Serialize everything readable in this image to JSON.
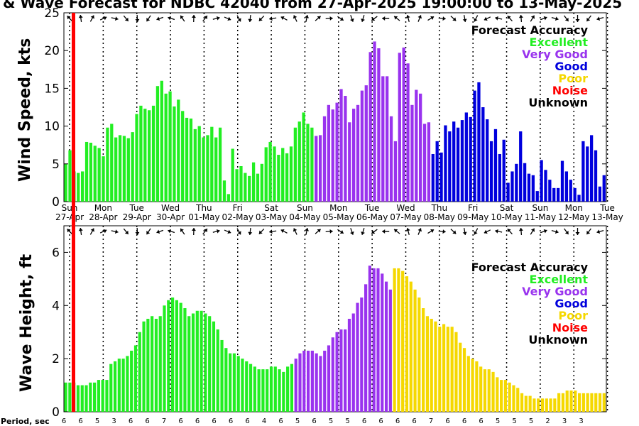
{
  "title": "& Wave Forecast for NDBC 42040 from 27-Apr-2025 19:00:00 to 13-May-2025",
  "legend": {
    "title": "Forecast Accuracy",
    "items": [
      {
        "label": "Excellent",
        "color": "#22ee22"
      },
      {
        "label": "Very Good",
        "color": "#9933ee"
      },
      {
        "label": "Good",
        "color": "#0000dd"
      },
      {
        "label": "Poor",
        "color": "#f5d800"
      },
      {
        "label": "Noise",
        "color": "#ff0000"
      },
      {
        "label": "Unknown",
        "color": "#000000"
      }
    ]
  },
  "period_label": "Period, sec",
  "period_values": [
    "6",
    "6",
    "5",
    "3",
    "6",
    "6",
    "7",
    "6",
    "6",
    "6",
    "6",
    "6",
    "4",
    "6",
    "5",
    "6",
    "5",
    "5",
    "6",
    "6",
    "6",
    "6",
    "7",
    "6",
    "6",
    "6",
    "5",
    "5",
    "5",
    "2",
    "3",
    "3"
  ],
  "chart_data": [
    {
      "type": "bar",
      "ylabel": "Wind Speed, kts",
      "ylim": [
        0,
        25
      ],
      "yticks": [
        0,
        5,
        10,
        15,
        20,
        25
      ],
      "days": [
        {
          "day": "Sun",
          "date": "27-Apr"
        },
        {
          "day": "Mon",
          "date": "28-Apr"
        },
        {
          "day": "Tue",
          "date": "29-Apr"
        },
        {
          "day": "Wed",
          "date": "30-Apr"
        },
        {
          "day": "Thu",
          "date": "01-May"
        },
        {
          "day": "Fri",
          "date": "02-May"
        },
        {
          "day": "Sat",
          "date": "03-May"
        },
        {
          "day": "Sun",
          "date": "04-May"
        },
        {
          "day": "Mon",
          "date": "05-May"
        },
        {
          "day": "Tue",
          "date": "06-May"
        },
        {
          "day": "Wed",
          "date": "07-May"
        },
        {
          "day": "Thu",
          "date": "08-May"
        },
        {
          "day": "Fri",
          "date": "09-May"
        },
        {
          "day": "Sat",
          "date": "10-May"
        },
        {
          "day": "Sun",
          "date": "11-May"
        },
        {
          "day": "Mon",
          "date": "12-May"
        },
        {
          "day": "Tue",
          "date": "13-May"
        }
      ],
      "values": [
        5,
        6.8,
        4,
        3.8,
        4,
        7.9,
        7.8,
        7.4,
        7.1,
        6,
        9.8,
        10.3,
        8.5,
        8.8,
        8.7,
        8.4,
        9.2,
        11.6,
        12.7,
        12.3,
        12.1,
        12.7,
        15.3,
        16,
        14.3,
        14.6,
        12.6,
        13.5,
        12,
        11.1,
        11,
        9.6,
        10,
        8.5,
        8.8,
        9.9,
        8.5,
        9.8,
        2.8,
        1,
        7,
        4.3,
        4.7,
        3.8,
        3.4,
        5.2,
        3.7,
        5,
        7.2,
        7.9,
        7.3,
        6.2,
        7.1,
        6.4,
        7.3,
        9.8,
        10.6,
        11.8,
        10.3,
        9.8,
        8.7,
        8.8,
        11.3,
        12.8,
        12.2,
        13.1,
        14.9,
        14,
        10.5,
        12.3,
        12.8,
        14.7,
        15.4,
        19.8,
        21.2,
        20.3,
        16.6,
        16.6,
        11.3,
        8,
        19.7,
        20.4,
        18.3,
        12.8,
        14.8,
        14.3,
        10.3,
        10.5,
        6.3,
        8,
        6.5,
        10.1,
        9.3,
        10.6,
        9.8,
        10.8,
        11.8,
        11.2,
        14.7,
        15.8,
        12.5,
        10.9,
        8,
        9.6,
        6.3,
        8.2,
        2.5,
        4,
        5,
        9.3,
        5.1,
        3.7,
        3.5,
        1.4,
        5.5,
        4.2,
        2.9,
        1.8,
        1.8,
        5.4,
        4,
        2.9,
        1.8,
        0.9,
        8,
        7.3,
        8.8,
        6.8,
        2,
        3.5
      ],
      "colors": [
        "#22ee22",
        "#9933ee",
        "#0000dd"
      ],
      "color_breaks": [
        0,
        60,
        88
      ]
    },
    {
      "type": "bar",
      "ylabel": "Wave Height, ft",
      "ylim": [
        0,
        7
      ],
      "yticks": [
        0,
        2,
        4,
        6
      ],
      "values": [
        1.1,
        1.1,
        1.1,
        1.0,
        1.0,
        1.0,
        1.1,
        1.1,
        1.2,
        1.2,
        1.2,
        1.8,
        1.9,
        2.0,
        2.0,
        2.1,
        2.3,
        2.5,
        3.0,
        3.4,
        3.5,
        3.6,
        3.5,
        3.6,
        4.0,
        4.2,
        4.3,
        4.2,
        4.1,
        3.9,
        3.6,
        3.7,
        3.8,
        3.8,
        3.7,
        3.6,
        3.4,
        3.1,
        2.7,
        2.4,
        2.2,
        2.2,
        2.1,
        2.0,
        1.9,
        1.8,
        1.7,
        1.6,
        1.6,
        1.6,
        1.7,
        1.7,
        1.6,
        1.5,
        1.7,
        1.8,
        2.0,
        2.2,
        2.3,
        2.3,
        2.3,
        2.2,
        2.1,
        2.3,
        2.5,
        2.8,
        3.0,
        3.1,
        3.1,
        3.5,
        3.7,
        4.1,
        4.3,
        4.8,
        5.5,
        5.4,
        5.4,
        5.2,
        4.9,
        4.6,
        5.4,
        5.4,
        5.3,
        5.1,
        4.9,
        4.6,
        4.3,
        3.9,
        3.6,
        3.5,
        3.4,
        3.2,
        3.3,
        3.2,
        3.2,
        3.0,
        2.6,
        2.4,
        2.1,
        2.0,
        1.9,
        1.7,
        1.6,
        1.6,
        1.5,
        1.3,
        1.2,
        1.2,
        1.1,
        1.0,
        0.9,
        0.7,
        0.6,
        0.6,
        0.5,
        0.5,
        0.5,
        0.5,
        0.5,
        0.5,
        0.7,
        0.7,
        0.8,
        0.8,
        0.8,
        0.7,
        0.7,
        0.7,
        0.7,
        0.7,
        0.7,
        0.7
      ],
      "colors": [
        "#22ee22",
        "#9933ee",
        "#f5d800"
      ],
      "color_breaks": [
        0,
        56,
        80
      ]
    }
  ]
}
